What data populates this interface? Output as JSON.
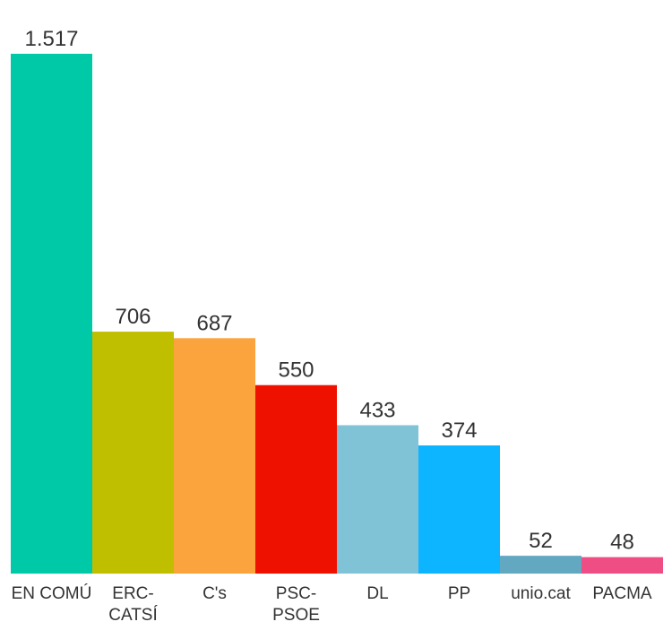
{
  "chart_data": {
    "type": "bar",
    "categories": [
      [
        "EN COMÚ"
      ],
      [
        "ERC-",
        "CATSÍ"
      ],
      [
        "C's"
      ],
      [
        "PSC-",
        "PSOE"
      ],
      [
        "DL"
      ],
      [
        "PP"
      ],
      [
        "unio.cat"
      ],
      [
        "PACMA"
      ]
    ],
    "values": [
      1517,
      706,
      687,
      550,
      433,
      374,
      52,
      48
    ],
    "value_labels": [
      "1.517",
      "706",
      "687",
      "550",
      "433",
      "374",
      "52",
      "48"
    ],
    "colors": [
      "#00c9a7",
      "#bfbf00",
      "#fba33c",
      "#ee1100",
      "#80c3d6",
      "#0db4ff",
      "#62a8c1",
      "#ef4e85"
    ],
    "title": "",
    "xlabel": "",
    "ylabel": "",
    "ylim": [
      0,
      1517
    ],
    "grid": false,
    "legend": "none"
  }
}
